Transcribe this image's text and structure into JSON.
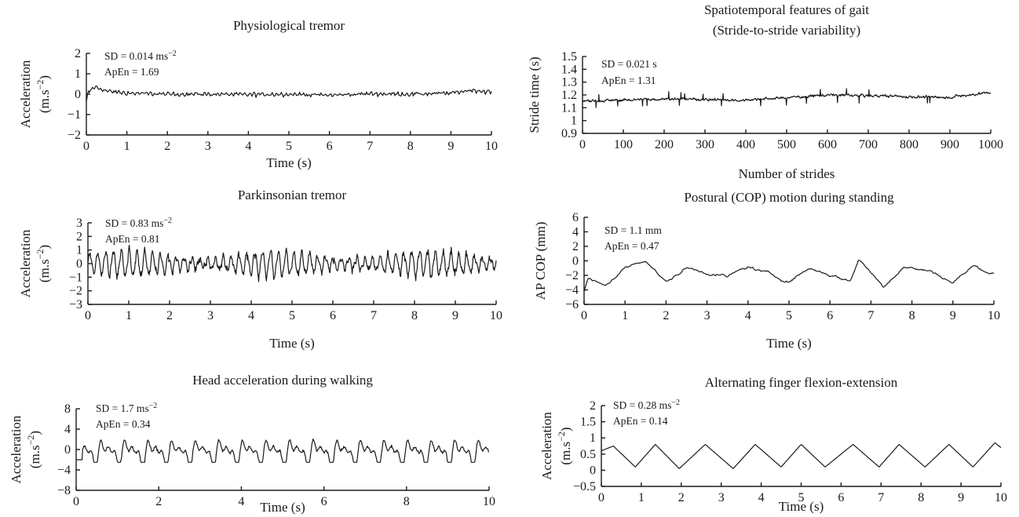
{
  "chart_data": [
    {
      "type": "line",
      "title": "Physiological tremor",
      "xlabel": "Time (s)",
      "ylabel": [
        "Acceleration",
        "(m.s−2)"
      ],
      "xlim": [
        0,
        10
      ],
      "ylim": [
        -2,
        2
      ],
      "xticks": [
        "0",
        "1",
        "2",
        "3",
        "4",
        "5",
        "6",
        "7",
        "8",
        "9",
        "10"
      ],
      "yticks": [
        "−2",
        "−1",
        "0",
        "1",
        "2"
      ],
      "annotations": [
        "SD = 0.014 ms−2",
        "ApEn = 1.69"
      ],
      "series": [
        {
          "x_start": 0,
          "x_end": 10,
          "n": 400,
          "kind": "tremor",
          "mean": 0.0,
          "amplitude": 0.18,
          "points": [
            [
              0,
              -0.4
            ],
            [
              0.05,
              0.1
            ],
            [
              0.2,
              0.35
            ],
            [
              0.3,
              0.3
            ],
            [
              0.5,
              0.15
            ],
            [
              1,
              0.05
            ],
            [
              2,
              0.0
            ],
            [
              3,
              0.0
            ],
            [
              4,
              -0.02
            ],
            [
              5,
              0.0
            ],
            [
              6,
              -0.05
            ],
            [
              7,
              0.02
            ],
            [
              8,
              0.0
            ],
            [
              9,
              0.05
            ],
            [
              9.5,
              0.2
            ],
            [
              10,
              0.1
            ]
          ]
        }
      ]
    },
    {
      "type": "line",
      "title": "Parkinsonian tremor",
      "xlabel": "Time (s)",
      "ylabel": [
        "Acceleration",
        "(m.s−2)"
      ],
      "xlim": [
        0,
        10
      ],
      "ylim": [
        -3,
        3
      ],
      "xticks": [
        "0",
        "1",
        "2",
        "3",
        "4",
        "5",
        "6",
        "7",
        "8",
        "9",
        "10"
      ],
      "yticks": [
        "−3",
        "−2",
        "−1",
        "0",
        "1",
        "2",
        "3"
      ],
      "annotations": [
        "SD = 0.83 ms−2",
        "ApEn = 0.81"
      ],
      "series": [
        {
          "x_start": 0,
          "x_end": 10,
          "n": 900,
          "kind": "oscillation",
          "frequency_hz": 5.2,
          "mean": 0.0,
          "amplitude": 0.85,
          "range": [
            -1.6,
            1.4
          ]
        }
      ]
    },
    {
      "type": "line",
      "title": "Head acceleration during walking",
      "xlabel": "Time (s)",
      "ylabel": [
        "Acceleration",
        "(m.s−2)"
      ],
      "xlim": [
        0,
        10
      ],
      "ylim": [
        -8,
        8
      ],
      "xticks": [
        "0",
        "2",
        "4",
        "6",
        "8",
        "10"
      ],
      "yticks": [
        "−8",
        "−4",
        "0",
        "4",
        "8"
      ],
      "annotations": [
        "SD = 1.7 ms−2",
        "ApEn = 0.34"
      ],
      "series": [
        {
          "x_start": 0,
          "x_end": 10,
          "n": 700,
          "kind": "gait",
          "frequency_hz": 1.75,
          "mean": -0.5,
          "amplitude": 2.6,
          "range": [
            -2.5,
            4.5
          ]
        }
      ]
    },
    {
      "type": "line",
      "title": [
        "Spatiotemporal features of gait",
        "(Stride-to-stride variability)"
      ],
      "xlabel": "Number of strides",
      "ylabel": [
        "Stride time (s)"
      ],
      "xlim": [
        0,
        1000
      ],
      "ylim": [
        0.9,
        1.5
      ],
      "xticks": [
        "0",
        "100",
        "200",
        "300",
        "400",
        "500",
        "600",
        "700",
        "800",
        "900",
        "1000"
      ],
      "yticks": [
        "0.9",
        "1",
        "1.1",
        "1.2",
        "1.3",
        "1.4",
        "1.5"
      ],
      "annotations": [
        "SD = 0.021 s",
        "ApEn = 1.31"
      ],
      "series": [
        {
          "x_start": 0,
          "x_end": 1000,
          "n": 1000,
          "kind": "stride",
          "mean": 1.18,
          "amplitude": 0.021,
          "points": [
            [
              0,
              1.15
            ],
            [
              200,
              1.17
            ],
            [
              380,
              1.16
            ],
            [
              450,
              1.17
            ],
            [
              600,
              1.2
            ],
            [
              750,
              1.19
            ],
            [
              900,
              1.18
            ],
            [
              1000,
              1.22
            ]
          ]
        }
      ]
    },
    {
      "type": "line",
      "title": "Postural (COP) motion during standing",
      "xlabel": "Time (s)",
      "ylabel": [
        "AP COP (mm)"
      ],
      "xlim": [
        0,
        10
      ],
      "ylim": [
        -6,
        6
      ],
      "xticks": [
        "0",
        "1",
        "2",
        "3",
        "4",
        "5",
        "6",
        "7",
        "8",
        "9",
        "10"
      ],
      "yticks": [
        "−6",
        "−4",
        "−2",
        "0",
        "2",
        "4",
        "6"
      ],
      "annotations": [
        "SD = 1.1 mm",
        "ApEn = 0.47"
      ],
      "series": [
        {
          "x_start": 0,
          "x_end": 10,
          "n": 400,
          "kind": "sway",
          "mean": -1.5,
          "amplitude": 1.1,
          "range": [
            -4.3,
            0.4
          ],
          "points": [
            [
              0,
              -4.3
            ],
            [
              0.1,
              -2.5
            ],
            [
              0.5,
              -3.5
            ],
            [
              1.0,
              -1.0
            ],
            [
              1.5,
              0.2
            ],
            [
              2.0,
              -3.0
            ],
            [
              2.5,
              -1.0
            ],
            [
              3.5,
              -2.2
            ],
            [
              4.0,
              -0.8
            ],
            [
              5.0,
              -2.8
            ],
            [
              5.5,
              -1.0
            ],
            [
              6.5,
              -2.8
            ],
            [
              6.7,
              0.3
            ],
            [
              7.3,
              -3.5
            ],
            [
              7.8,
              -0.8
            ],
            [
              8.5,
              -1.5
            ],
            [
              9.0,
              -3.0
            ],
            [
              9.5,
              -0.7
            ],
            [
              10,
              -1.8
            ]
          ]
        }
      ]
    },
    {
      "type": "line",
      "title": "Alternating finger flexion-extension",
      "xlabel": "Time (s)",
      "ylabel": [
        "Acceleration",
        "(m.s−2)"
      ],
      "xlim": [
        0,
        10
      ],
      "ylim": [
        -0.5,
        2
      ],
      "xticks": [
        "0",
        "1",
        "2",
        "3",
        "4",
        "5",
        "6",
        "7",
        "8",
        "9",
        "10"
      ],
      "yticks": [
        "−0.5",
        "0",
        "0.5",
        "1",
        "1.5",
        "2"
      ],
      "annotations": [
        "SD = 0.28 ms−2",
        "ApEn = 0.14"
      ],
      "series": [
        {
          "x_start": 0,
          "x_end": 10,
          "n": 800,
          "kind": "sawtooth",
          "period_s": 1.15,
          "peak": 0.8,
          "trough": 0.05,
          "points": [
            [
              0,
              0.6
            ],
            [
              0.3,
              0.75
            ],
            [
              0.85,
              0.1
            ],
            [
              1.35,
              0.8
            ],
            [
              1.95,
              0.05
            ],
            [
              2.6,
              0.8
            ],
            [
              3.3,
              0.05
            ],
            [
              3.85,
              0.8
            ],
            [
              4.5,
              0.1
            ],
            [
              5.0,
              0.8
            ],
            [
              5.6,
              0.1
            ],
            [
              6.3,
              0.8
            ],
            [
              6.95,
              0.1
            ],
            [
              7.45,
              0.8
            ],
            [
              8.1,
              0.1
            ],
            [
              8.7,
              0.8
            ],
            [
              9.3,
              0.1
            ],
            [
              9.85,
              0.85
            ],
            [
              10,
              0.7
            ]
          ]
        }
      ]
    }
  ]
}
